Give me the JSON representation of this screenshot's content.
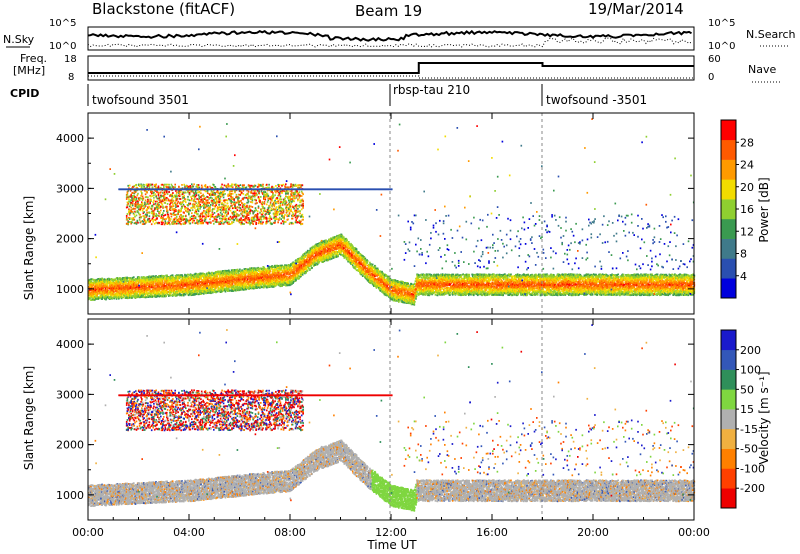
{
  "header": {
    "station": "Blackstone (fitACF)",
    "beam": "Beam 19",
    "date": "19/Mar/2014"
  },
  "sky_panel": {
    "left_label": "N.Sky",
    "right_label": "N.Search",
    "ticks_left": [
      "10^5",
      "10^0"
    ],
    "ticks_right": [
      "10^5",
      "10^0"
    ]
  },
  "freq_panel": {
    "left_label_1": "Freq.",
    "left_label_2": "[MHz]",
    "right_label": "Nave",
    "ticks_left": [
      "18",
      "8"
    ],
    "ticks_right": [
      "60",
      "0"
    ]
  },
  "cpid": {
    "label": "CPID",
    "segments": [
      {
        "name": "twofsound 3501",
        "start_hour": 0,
        "end_hour": 12.3
      },
      {
        "name": "rbsp-tau 210",
        "start_hour": 12.3,
        "end_hour": 18.0
      },
      {
        "name": "twofsound -3501",
        "start_hour": 18.0,
        "end_hour": 24.0
      }
    ]
  },
  "colors": {
    "power_scale": [
      "#0000dd",
      "#2a4fb0",
      "#3f7a8a",
      "#3a9a50",
      "#8fcf30",
      "#f2dc00",
      "#ff9a00",
      "#ff5a00",
      "#ff0000"
    ],
    "velocity_scale": [
      "#1a1acc",
      "#3357b8",
      "#2f8f5a",
      "#7fd640",
      "#b0b0b0",
      "#f0b040",
      "#ff8000",
      "#ff4000",
      "#ee0000"
    ]
  },
  "chart_data": [
    {
      "type": "heatmap",
      "title": "Power",
      "xlabel": "",
      "ylabel": "Slant Range [km]",
      "xlim": [
        0,
        24
      ],
      "ylim": [
        500,
        4500
      ],
      "y_ticks": [
        "1000",
        "2000",
        "3000",
        "4000"
      ],
      "colorbar": {
        "label": "Power [dB]",
        "ticks": [
          "4",
          "8",
          "12",
          "16",
          "20",
          "24",
          "28"
        ],
        "range": [
          0,
          32
        ]
      },
      "features": [
        {
          "desc": "main scatter band",
          "time": [
            0,
            2,
            4,
            6,
            8,
            9,
            10,
            11,
            12,
            12.9,
            13,
            18,
            24
          ],
          "range_km": [
            1000,
            1050,
            1100,
            1200,
            1300,
            1700,
            1900,
            1400,
            1000,
            900,
            1100,
            1100,
            1100
          ],
          "power_db": 28
        },
        {
          "desc": "upper patch",
          "time_start": 1.5,
          "time_end": 8.5,
          "range_start_km": 2300,
          "range_end_km": 3100,
          "power_db": 22
        },
        {
          "desc": "1.5-hop band",
          "time_start": 13,
          "time_end": 24,
          "range_start_km": 1400,
          "range_end_km": 2300,
          "power_db": 8
        }
      ]
    },
    {
      "type": "heatmap",
      "title": "Velocity",
      "xlabel": "Time UT",
      "ylabel": "Slant Range [km]",
      "xlim": [
        0,
        24
      ],
      "ylim": [
        500,
        4500
      ],
      "x_ticks": [
        "00:00",
        "04:00",
        "08:00",
        "12:00",
        "16:00",
        "20:00",
        "00:00"
      ],
      "y_ticks": [
        "1000",
        "2000",
        "3000",
        "4000"
      ],
      "colorbar": {
        "label": "Velocity [m s⁻¹]",
        "ticks": [
          "200",
          "100",
          "50",
          "15",
          "-15",
          "-50",
          "-100",
          "-200"
        ],
        "range": [
          -250,
          250
        ]
      },
      "features": [
        {
          "desc": "ground scatter band (grey, near 0 m/s)",
          "time": [
            0,
            4,
            8,
            10,
            12,
            13,
            18,
            24
          ],
          "range_km": [
            1100,
            1200,
            1400,
            1800,
            1000,
            1100,
            1100,
            1100
          ],
          "velocity_ms": 0
        },
        {
          "desc": "upper patch mixed velocities",
          "time_start": 1.5,
          "time_end": 8.5,
          "range_start_km": 2300,
          "range_end_km": 3100
        }
      ]
    }
  ],
  "axes": {
    "x_title": "Time UT",
    "x_ticks": [
      "00:00",
      "04:00",
      "08:00",
      "12:00",
      "16:00",
      "20:00",
      "00:00"
    ],
    "y_title": "Slant Range [km]",
    "y_ticks": [
      "1000",
      "2000",
      "3000",
      "4000"
    ],
    "power_cbar_title": "Power [dB]",
    "velocity_cbar_title": "Velocity [m s⁻¹]"
  }
}
